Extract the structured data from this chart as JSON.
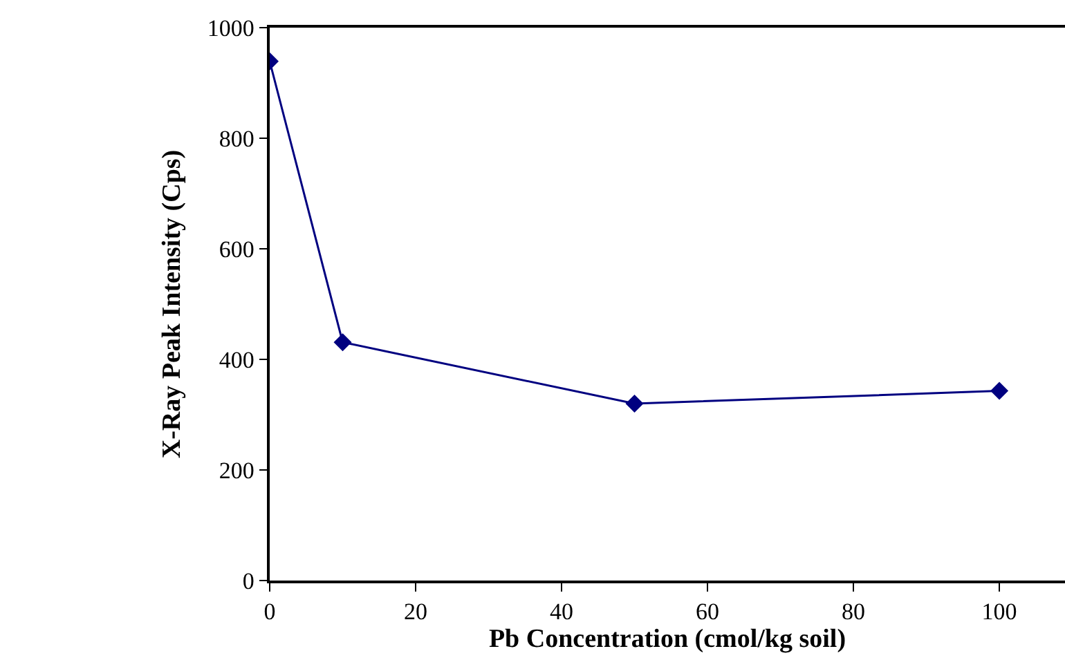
{
  "chart_data": {
    "type": "line",
    "xlabel": "Pb Concentration (cmol/kg soil)",
    "ylabel": "X-Ray Peak Intensity (Cps)",
    "x": [
      0,
      10,
      50,
      100
    ],
    "series": [
      {
        "color": "#000080",
        "values": [
          939,
          431,
          320,
          343
        ]
      }
    ],
    "xlim": [
      0,
      109
    ],
    "xticks": [
      0,
      20,
      40,
      60,
      80,
      100
    ],
    "ylim": [
      0,
      1000
    ],
    "yticks": [
      0,
      200,
      400,
      600,
      800,
      1000
    ],
    "marker": "diamond",
    "line_style": "solid"
  }
}
